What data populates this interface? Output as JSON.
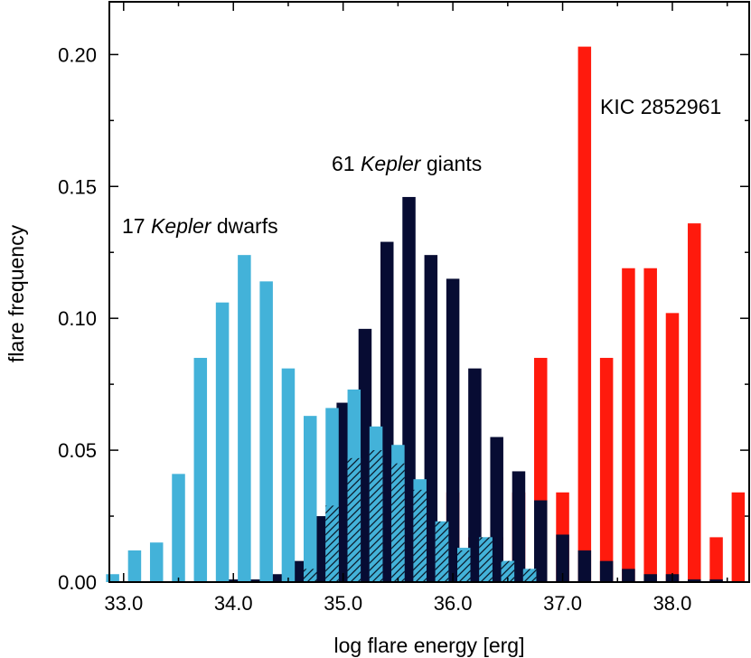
{
  "chart_data": {
    "type": "bar",
    "title": "",
    "xlabel": "log flare energy [erg]",
    "ylabel": "flare frequency",
    "xlim": [
      32.87,
      38.7
    ],
    "ylim": [
      0.0,
      0.22
    ],
    "xticks": [
      33.0,
      34.0,
      35.0,
      36.0,
      37.0,
      38.0
    ],
    "xtick_labels": [
      "33.0",
      "34.0",
      "35.0",
      "36.0",
      "37.0",
      "38.0"
    ],
    "yticks": [
      0.0,
      0.05,
      0.1,
      0.15,
      0.2
    ],
    "ytick_labels": [
      "0.00",
      "0.05",
      "0.10",
      "0.15",
      "0.20"
    ],
    "bin_width": 0.2,
    "series": [
      {
        "name": "KIC 2852961",
        "color": "#ff1a0d",
        "offset": 0.1,
        "x": [
          35.9,
          36.1,
          36.3,
          36.5,
          36.7,
          36.9,
          37.1,
          37.3,
          37.5,
          37.7,
          37.9,
          38.1,
          38.3,
          38.5
        ],
        "values": [
          0.034,
          0.017,
          0.017,
          0.034,
          0.085,
          0.034,
          0.203,
          0.085,
          0.119,
          0.119,
          0.102,
          0.136,
          0.017,
          0.034
        ]
      },
      {
        "name": "61 Kepler giants",
        "color": "#070c33",
        "offset": 0.0,
        "x": [
          34.0,
          34.2,
          34.4,
          34.6,
          34.8,
          35.0,
          35.2,
          35.4,
          35.6,
          35.8,
          36.0,
          36.2,
          36.4,
          36.6,
          36.8,
          37.0,
          37.2,
          37.4,
          37.6,
          37.8,
          38.0,
          38.2,
          38.4
        ],
        "values": [
          0.001,
          0.001,
          0.003,
          0.008,
          0.025,
          0.068,
          0.096,
          0.129,
          0.146,
          0.124,
          0.115,
          0.081,
          0.055,
          0.042,
          0.031,
          0.018,
          0.012,
          0.008,
          0.005,
          0.003,
          0.003,
          0.001,
          0.001
        ]
      },
      {
        "name": "17 Kepler dwarfs",
        "color": "#43b2d9",
        "offset": -0.1,
        "x": [
          33.0,
          33.2,
          33.4,
          33.6,
          33.8,
          34.0,
          34.2,
          34.4,
          34.6,
          34.8,
          35.0,
          35.2,
          35.4,
          35.6,
          35.8,
          36.0,
          36.2,
          36.4,
          36.6,
          36.8
        ],
        "values": [
          0.003,
          0.012,
          0.015,
          0.041,
          0.085,
          0.106,
          0.124,
          0.114,
          0.081,
          0.063,
          0.066,
          0.073,
          0.059,
          0.052,
          0.039,
          0.023,
          0.013,
          0.017,
          0.008,
          0.005
        ]
      }
    ],
    "overlap": {
      "name": "giants-dwarfs overlap (hatched)",
      "color": "#43b2d9",
      "offset": -0.1,
      "x": [
        34.8,
        35.0,
        35.2,
        35.4,
        35.6,
        35.8,
        36.0,
        36.2,
        36.4,
        36.6,
        36.8
      ],
      "values": [
        0.005,
        0.029,
        0.047,
        0.05,
        0.045,
        0.035,
        0.023,
        0.012,
        0.017,
        0.008,
        0.005
      ]
    },
    "annotations": [
      {
        "id": "dwarfs",
        "prefix": "17 ",
        "italic": "Kepler",
        "suffix": " dwarfs"
      },
      {
        "id": "giants",
        "prefix": "61 ",
        "italic": "Kepler",
        "suffix": " giants"
      },
      {
        "id": "kic",
        "prefix": "KIC 2852961",
        "italic": "",
        "suffix": ""
      }
    ]
  }
}
